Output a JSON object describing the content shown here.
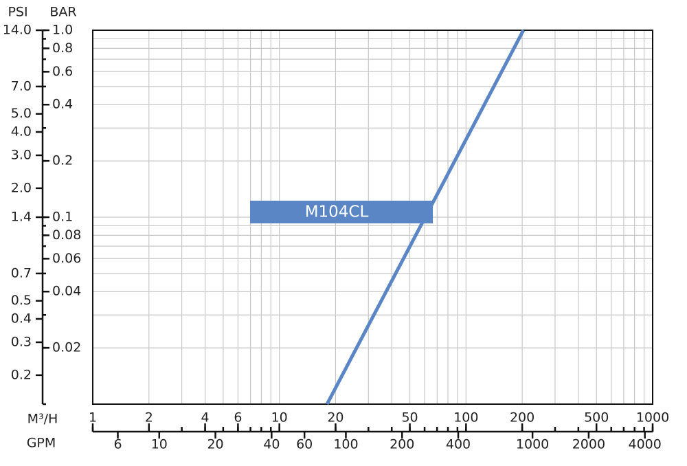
{
  "chart_data": {
    "type": "line",
    "xlabel": "M³/H",
    "x2label": "GPM",
    "ylabel": "PSI",
    "y2label": "BAR",
    "xscale": "log",
    "yscale": "log",
    "xlim": [
      1,
      1000
    ],
    "xticks": [
      1,
      2,
      4,
      6,
      10,
      20,
      50,
      100,
      200,
      500,
      1000
    ],
    "x2lim": [
      4.403,
      4403
    ],
    "x2ticks": [
      6,
      10,
      20,
      40,
      60,
      100,
      200,
      400,
      1000,
      2000,
      4000
    ],
    "ylim": [
      0.01,
      1
    ],
    "yticks": [
      {
        "value": 1,
        "label": "1.0"
      },
      0.8,
      0.6,
      0.4,
      0.2,
      0.1,
      0.08,
      0.06,
      0.04,
      0.02
    ],
    "y2lim": [
      0.14,
      14
    ],
    "y2ticks": [
      {
        "value": 14,
        "label": "14.0"
      },
      {
        "value": 7,
        "label": "7.0"
      },
      {
        "value": 5,
        "label": "5.0"
      },
      {
        "value": 4,
        "label": "4.0"
      },
      {
        "value": 3,
        "label": "3.0"
      },
      {
        "value": 2,
        "label": "2.0"
      },
      1.4,
      0.7,
      0.5,
      0.4,
      0.3,
      0.2
    ],
    "xgrid": [
      1,
      2,
      3,
      4,
      5,
      6,
      7,
      8,
      9,
      10,
      20,
      30,
      40,
      50,
      60,
      70,
      80,
      90,
      100,
      200,
      300,
      400,
      500,
      600,
      700,
      800,
      900,
      1000
    ],
    "ygrid": [
      0.01,
      0.02,
      0.03,
      0.04,
      0.05,
      0.06,
      0.07,
      0.08,
      0.09,
      0.1,
      0.2,
      0.3,
      0.4,
      0.5,
      0.6,
      0.7,
      0.8,
      0.9,
      1
    ],
    "grid": true,
    "series": [
      {
        "name": "M104CL",
        "color": "#5b86c5",
        "x": [
          18,
          203
        ],
        "values": [
          0.01,
          1
        ]
      }
    ]
  }
}
